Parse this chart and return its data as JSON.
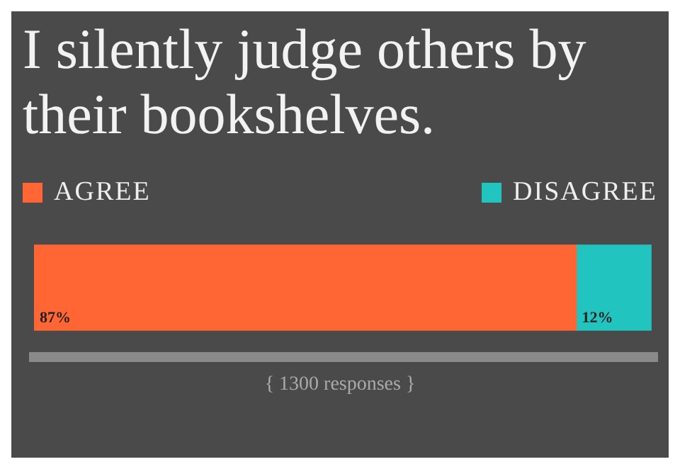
{
  "chart_data": {
    "type": "bar",
    "title": "I silently judge others by their bookshelves.",
    "orientation": "horizontal",
    "stacked": true,
    "legend": "top",
    "categories": [
      null
    ],
    "series": [
      {
        "name": "AGREE",
        "color": "#ff6633",
        "values": [
          87
        ],
        "value_labels": [
          "87%"
        ]
      },
      {
        "name": "DISAGREE",
        "color": "#22c4c0",
        "values": [
          12
        ],
        "value_labels": [
          "12%"
        ]
      }
    ],
    "annotations": [
      "{ 1300 responses }"
    ]
  }
}
